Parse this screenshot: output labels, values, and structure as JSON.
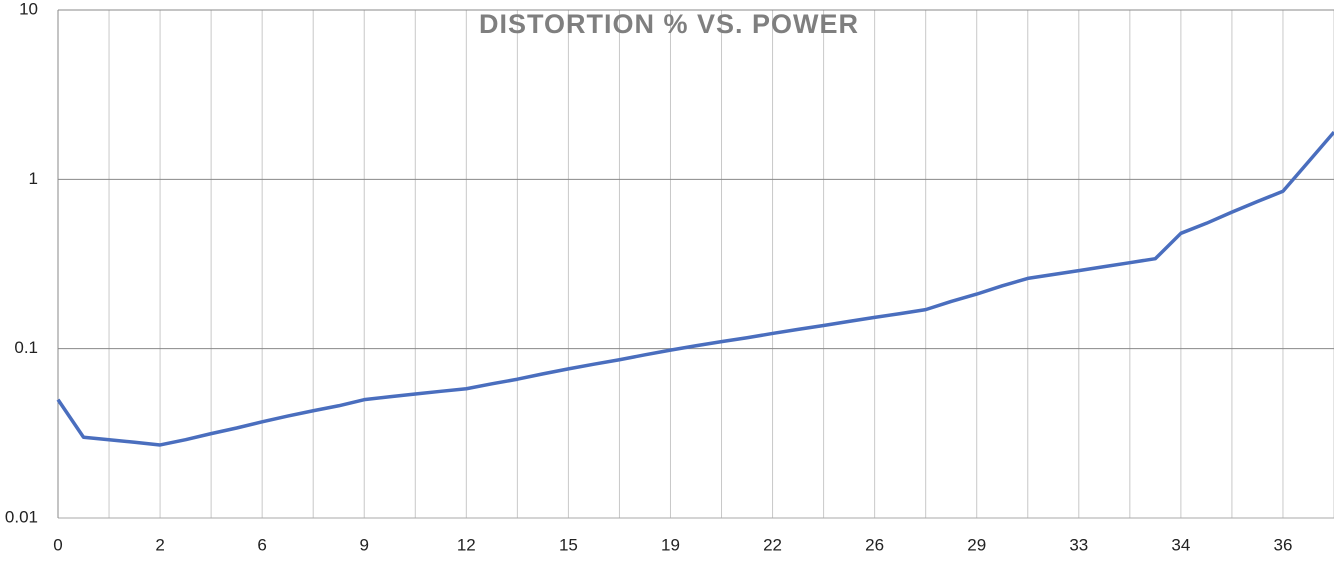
{
  "chart_data": {
    "type": "line",
    "title": "DISTORTION % VS. POWER",
    "categories": [
      "0",
      null,
      null,
      null,
      "2",
      null,
      null,
      null,
      "6",
      null,
      null,
      null,
      "9",
      null,
      null,
      null,
      "12",
      null,
      null,
      null,
      "15",
      null,
      null,
      null,
      "19",
      null,
      null,
      null,
      "22",
      null,
      null,
      null,
      "26",
      null,
      null,
      null,
      "29",
      null,
      null,
      null,
      "33",
      null,
      null,
      null,
      "34",
      null,
      null,
      null,
      "36",
      null,
      null
    ],
    "series": [
      {
        "color": "#4a6ebe",
        "values": [
          0.05,
          0.03,
          0.029,
          0.028,
          0.027,
          0.029,
          0.0315,
          0.034,
          0.037,
          0.04,
          0.043,
          0.046,
          0.05,
          0.052,
          0.054,
          0.056,
          0.058,
          0.062,
          0.066,
          0.071,
          0.076,
          0.081,
          0.086,
          0.092,
          0.098,
          0.104,
          0.11,
          0.116,
          0.123,
          0.13,
          0.137,
          0.145,
          0.153,
          0.161,
          0.17,
          0.19,
          0.21,
          0.235,
          0.26,
          0.274,
          0.289,
          0.305,
          0.322,
          0.34,
          0.48,
          0.55,
          0.64,
          0.74,
          0.85,
          1.27,
          1.9
        ]
      }
    ],
    "ylim": [
      0.01,
      10
    ],
    "yticks": [
      0.01,
      0.1,
      1,
      10
    ],
    "log_y": true,
    "grid": true
  }
}
